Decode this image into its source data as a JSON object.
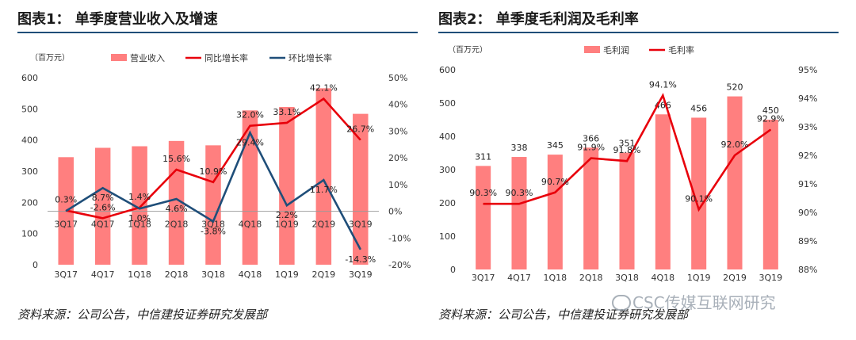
{
  "chart_data": [
    {
      "type": "bar",
      "title": "图表1： 单季度营业收入及增速",
      "unit_label": "（百万元）",
      "categories": [
        "3Q17",
        "4Q17",
        "1Q18",
        "2Q18",
        "3Q18",
        "4Q18",
        "1Q19",
        "2Q19",
        "3Q19"
      ],
      "left_axis": {
        "min": 0,
        "max": 600,
        "ticks": [
          "0",
          "100",
          "200",
          "300",
          "400",
          "500",
          "600"
        ]
      },
      "right_axis": {
        "min": -20,
        "max": 50,
        "ticks": [
          "-20%",
          "-10%",
          "0%",
          "10%",
          "20%",
          "30%",
          "40%",
          "50%"
        ]
      },
      "legend": [
        "营业收入",
        "同比增长率",
        "环比增长率"
      ],
      "series": [
        {
          "name": "营业收入",
          "kind": "bar",
          "axis": "left",
          "color": "#ff7f7f",
          "values": [
            345,
            375,
            380,
            397,
            383,
            495,
            506,
            566,
            484
          ]
        },
        {
          "name": "同比增长率",
          "kind": "line",
          "axis": "right",
          "color": "#e8000b",
          "values": [
            0.3,
            -2.6,
            1.4,
            15.6,
            10.9,
            32.0,
            33.1,
            42.1,
            26.7
          ],
          "labels": [
            "0.3%",
            "-2.6%",
            "1.4%",
            "15.6%",
            "10.9%",
            "32.0%",
            "33.1%",
            "42.1%",
            "26.7%"
          ]
        },
        {
          "name": "环比增长率",
          "kind": "line",
          "axis": "right",
          "color": "#1f4e79",
          "values": [
            0.1,
            8.7,
            1.0,
            4.6,
            -3.8,
            29.4,
            2.2,
            11.7,
            -14.3
          ],
          "labels": [
            "",
            "8.7%",
            "1.0%",
            "4.6%",
            "-3.8%",
            "29.4%",
            "2.2%",
            "11.7%",
            "-14.3%"
          ]
        }
      ],
      "source": "资料来源：公司公告，中信建投证券研究发展部"
    },
    {
      "type": "bar",
      "title": "图表2： 单季度毛利润及毛利率",
      "unit_label": "（百万元）",
      "categories": [
        "3Q17",
        "4Q17",
        "1Q18",
        "2Q18",
        "3Q18",
        "4Q18",
        "1Q19",
        "2Q19",
        "3Q19"
      ],
      "left_axis": {
        "min": 0,
        "max": 600,
        "ticks": [
          "0",
          "100",
          "200",
          "300",
          "400",
          "500",
          "600"
        ]
      },
      "right_axis": {
        "min": 88,
        "max": 95,
        "ticks": [
          "88%",
          "89%",
          "90%",
          "91%",
          "92%",
          "93%",
          "94%",
          "95%"
        ]
      },
      "legend": [
        "毛利润",
        "毛利率"
      ],
      "series": [
        {
          "name": "毛利润",
          "kind": "bar",
          "axis": "left",
          "color": "#ff7f7f",
          "values": [
            311,
            338,
            345,
            366,
            351,
            466,
            456,
            520,
            450
          ],
          "labels": [
            "311",
            "338",
            "345",
            "366",
            "351",
            "466",
            "456",
            "520",
            "450"
          ]
        },
        {
          "name": "毛利率",
          "kind": "line",
          "axis": "right",
          "color": "#e8000b",
          "values": [
            90.3,
            90.3,
            90.7,
            91.9,
            91.8,
            94.1,
            90.1,
            92.0,
            92.9
          ],
          "labels": [
            "90.3%",
            "90.3%",
            "90.7%",
            "91.9%",
            "91.8%",
            "94.1%",
            "90.1%",
            "92.0%",
            "92.9%"
          ]
        }
      ],
      "source": "资料来源：公司公告，中信建投证券研究发展部"
    }
  ],
  "watermark": "CSC传媒互联网研究",
  "watermark_icon": "wechat-icon"
}
